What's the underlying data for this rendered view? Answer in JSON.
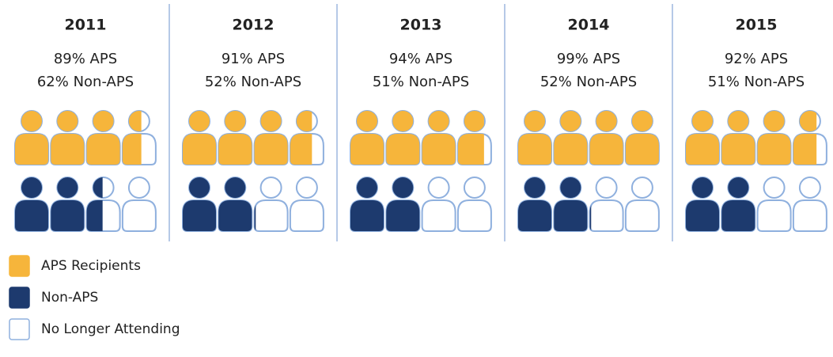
{
  "chart_data": {
    "type": "pictogram",
    "categories": [
      "2011",
      "2012",
      "2013",
      "2014",
      "2015"
    ],
    "unit_per_icon": 25,
    "series": [
      {
        "name": "APS Recipients",
        "color": "#f6b53b",
        "values": [
          89,
          91,
          94,
          99,
          92
        ],
        "value_labels": [
          "89% APS",
          "91% APS",
          "94% APS",
          "99% APS",
          "92% APS"
        ]
      },
      {
        "name": "Non-APS",
        "color": "#1d3a6e",
        "values": [
          62,
          52,
          51,
          52,
          51
        ],
        "value_labels": [
          "62% Non-APS",
          "52% Non-APS",
          "51% Non-APS",
          "52% Non-APS",
          "51% Non-APS"
        ]
      }
    ],
    "outline": {
      "name": "No Longer Attending",
      "color": "#8fb0de"
    }
  }
}
